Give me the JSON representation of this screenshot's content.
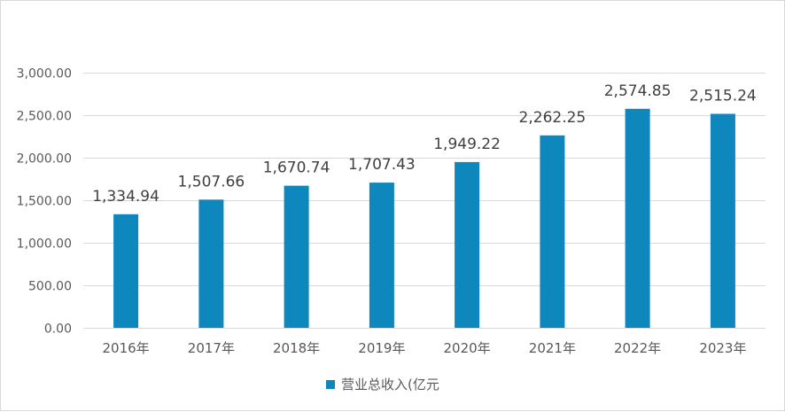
{
  "chart_data": {
    "type": "bar",
    "categories": [
      "2016年",
      "2017年",
      "2018年",
      "2019年",
      "2020年",
      "2021年",
      "2022年",
      "2023年"
    ],
    "series": [
      {
        "name": "营业总收入(亿元",
        "values": [
          1334.94,
          1507.66,
          1670.74,
          1707.43,
          1949.22,
          2262.25,
          2574.85,
          2515.24
        ],
        "value_labels": [
          "1,334.94",
          "1,507.66",
          "1,670.74",
          "1,707.43",
          "1,949.22",
          "2,262.25",
          "2,574.85",
          "2,515.24"
        ],
        "color": "#0e87bd"
      }
    ],
    "y_ticks": [
      0,
      500,
      1000,
      1500,
      2000,
      2500,
      3000
    ],
    "y_tick_labels": [
      "0.00",
      "500.00",
      "1,000.00",
      "1,500.00",
      "2,000.00",
      "2,500.00",
      "3,000.00"
    ],
    "ylim": [
      0,
      3000
    ],
    "title": "",
    "xlabel": "",
    "ylabel": "",
    "grid": true,
    "legend": "bottom-center",
    "colors": {
      "bar": "#0e87bd",
      "grid": "#d9d9d9",
      "frame": "#d9d9d9",
      "text": "#595959"
    }
  }
}
